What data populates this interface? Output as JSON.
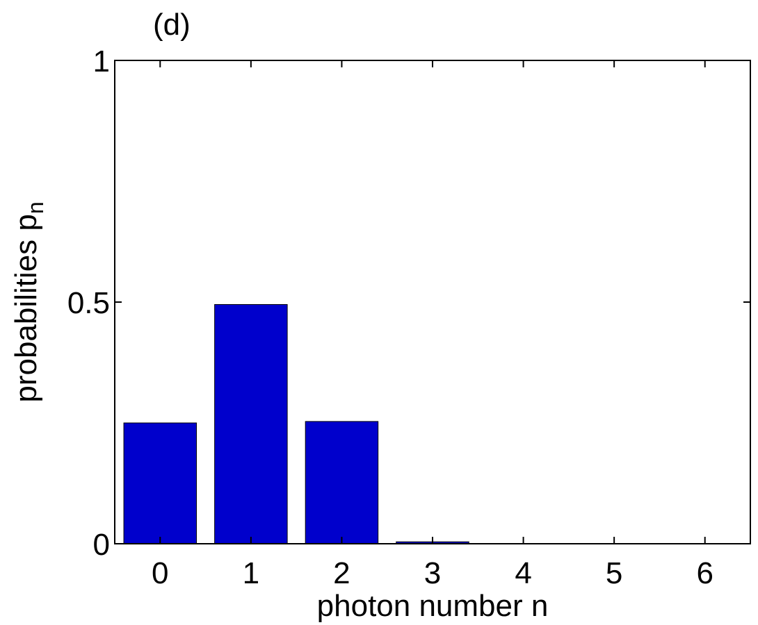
{
  "chart_data": {
    "type": "bar",
    "panel_label": "(d)",
    "categories": [
      "0",
      "1",
      "2",
      "3",
      "4",
      "5",
      "6"
    ],
    "values": [
      0.25,
      0.495,
      0.253,
      0.004,
      0,
      0,
      0
    ],
    "xlabel": "photon number n",
    "ylabel_main": "probabilities p",
    "ylabel_sub": "n",
    "ylim": [
      0,
      1
    ],
    "yticks": [
      0,
      0.5,
      1
    ],
    "ytick_labels": [
      "0",
      "0.5",
      "1"
    ],
    "bar_color": "#0000cc",
    "grid": false,
    "legend": "none"
  }
}
